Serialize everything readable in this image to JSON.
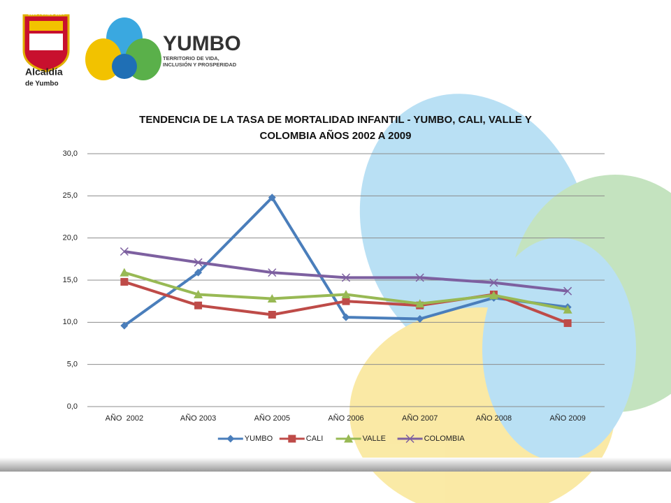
{
  "header": {
    "seal_text": "1536 YUMBO 1864",
    "city_line1": "Alcaldía",
    "city_line2": "de Yumbo",
    "brand": "YUMBO",
    "slogan_line1": "TERRITORIO DE VIDA,",
    "slogan_line2": "INCLUSIÓN Y PROSPERIDAD"
  },
  "chart_data": {
    "type": "line",
    "title": "TENDENCIA DE LA TASA DE MORTALIDAD INFANTIL - YUMBO, CALI, VALLE Y COLOMBIA AÑOS 2002 A 2009",
    "categories": [
      "AÑO  2002",
      "AÑO 2003",
      "AÑO 2005",
      "AÑO 2006",
      "AÑO 2007",
      "AÑO 2008",
      "AÑO 2009"
    ],
    "series": [
      {
        "name": "YUMBO",
        "color": "#4a7ebb",
        "marker": "diamond",
        "values": [
          9.6,
          15.9,
          24.8,
          10.6,
          10.4,
          12.9,
          11.8
        ]
      },
      {
        "name": "CALI",
        "color": "#be4b48",
        "marker": "square",
        "values": [
          14.8,
          12.0,
          10.9,
          12.5,
          12.0,
          13.3,
          9.9
        ]
      },
      {
        "name": "VALLE",
        "color": "#98b954",
        "marker": "triangle",
        "values": [
          15.9,
          13.3,
          12.8,
          13.3,
          12.2,
          13.2,
          11.5
        ]
      },
      {
        "name": "COLOMBIA",
        "color": "#7d60a0",
        "marker": "x",
        "values": [
          18.4,
          17.1,
          15.9,
          15.3,
          15.3,
          14.7,
          13.7
        ]
      }
    ],
    "ylim": [
      0,
      30
    ],
    "yticks": [
      {
        "value": 0,
        "label": "0,0"
      },
      {
        "value": 5,
        "label": "5,0"
      },
      {
        "value": 10,
        "label": "10,0"
      },
      {
        "value": 15,
        "label": "15,0"
      },
      {
        "value": 20,
        "label": "20,0"
      },
      {
        "value": 25,
        "label": "25,0"
      },
      {
        "value": 30,
        "label": "30,0"
      }
    ],
    "grid": true,
    "legend": "bottom"
  }
}
